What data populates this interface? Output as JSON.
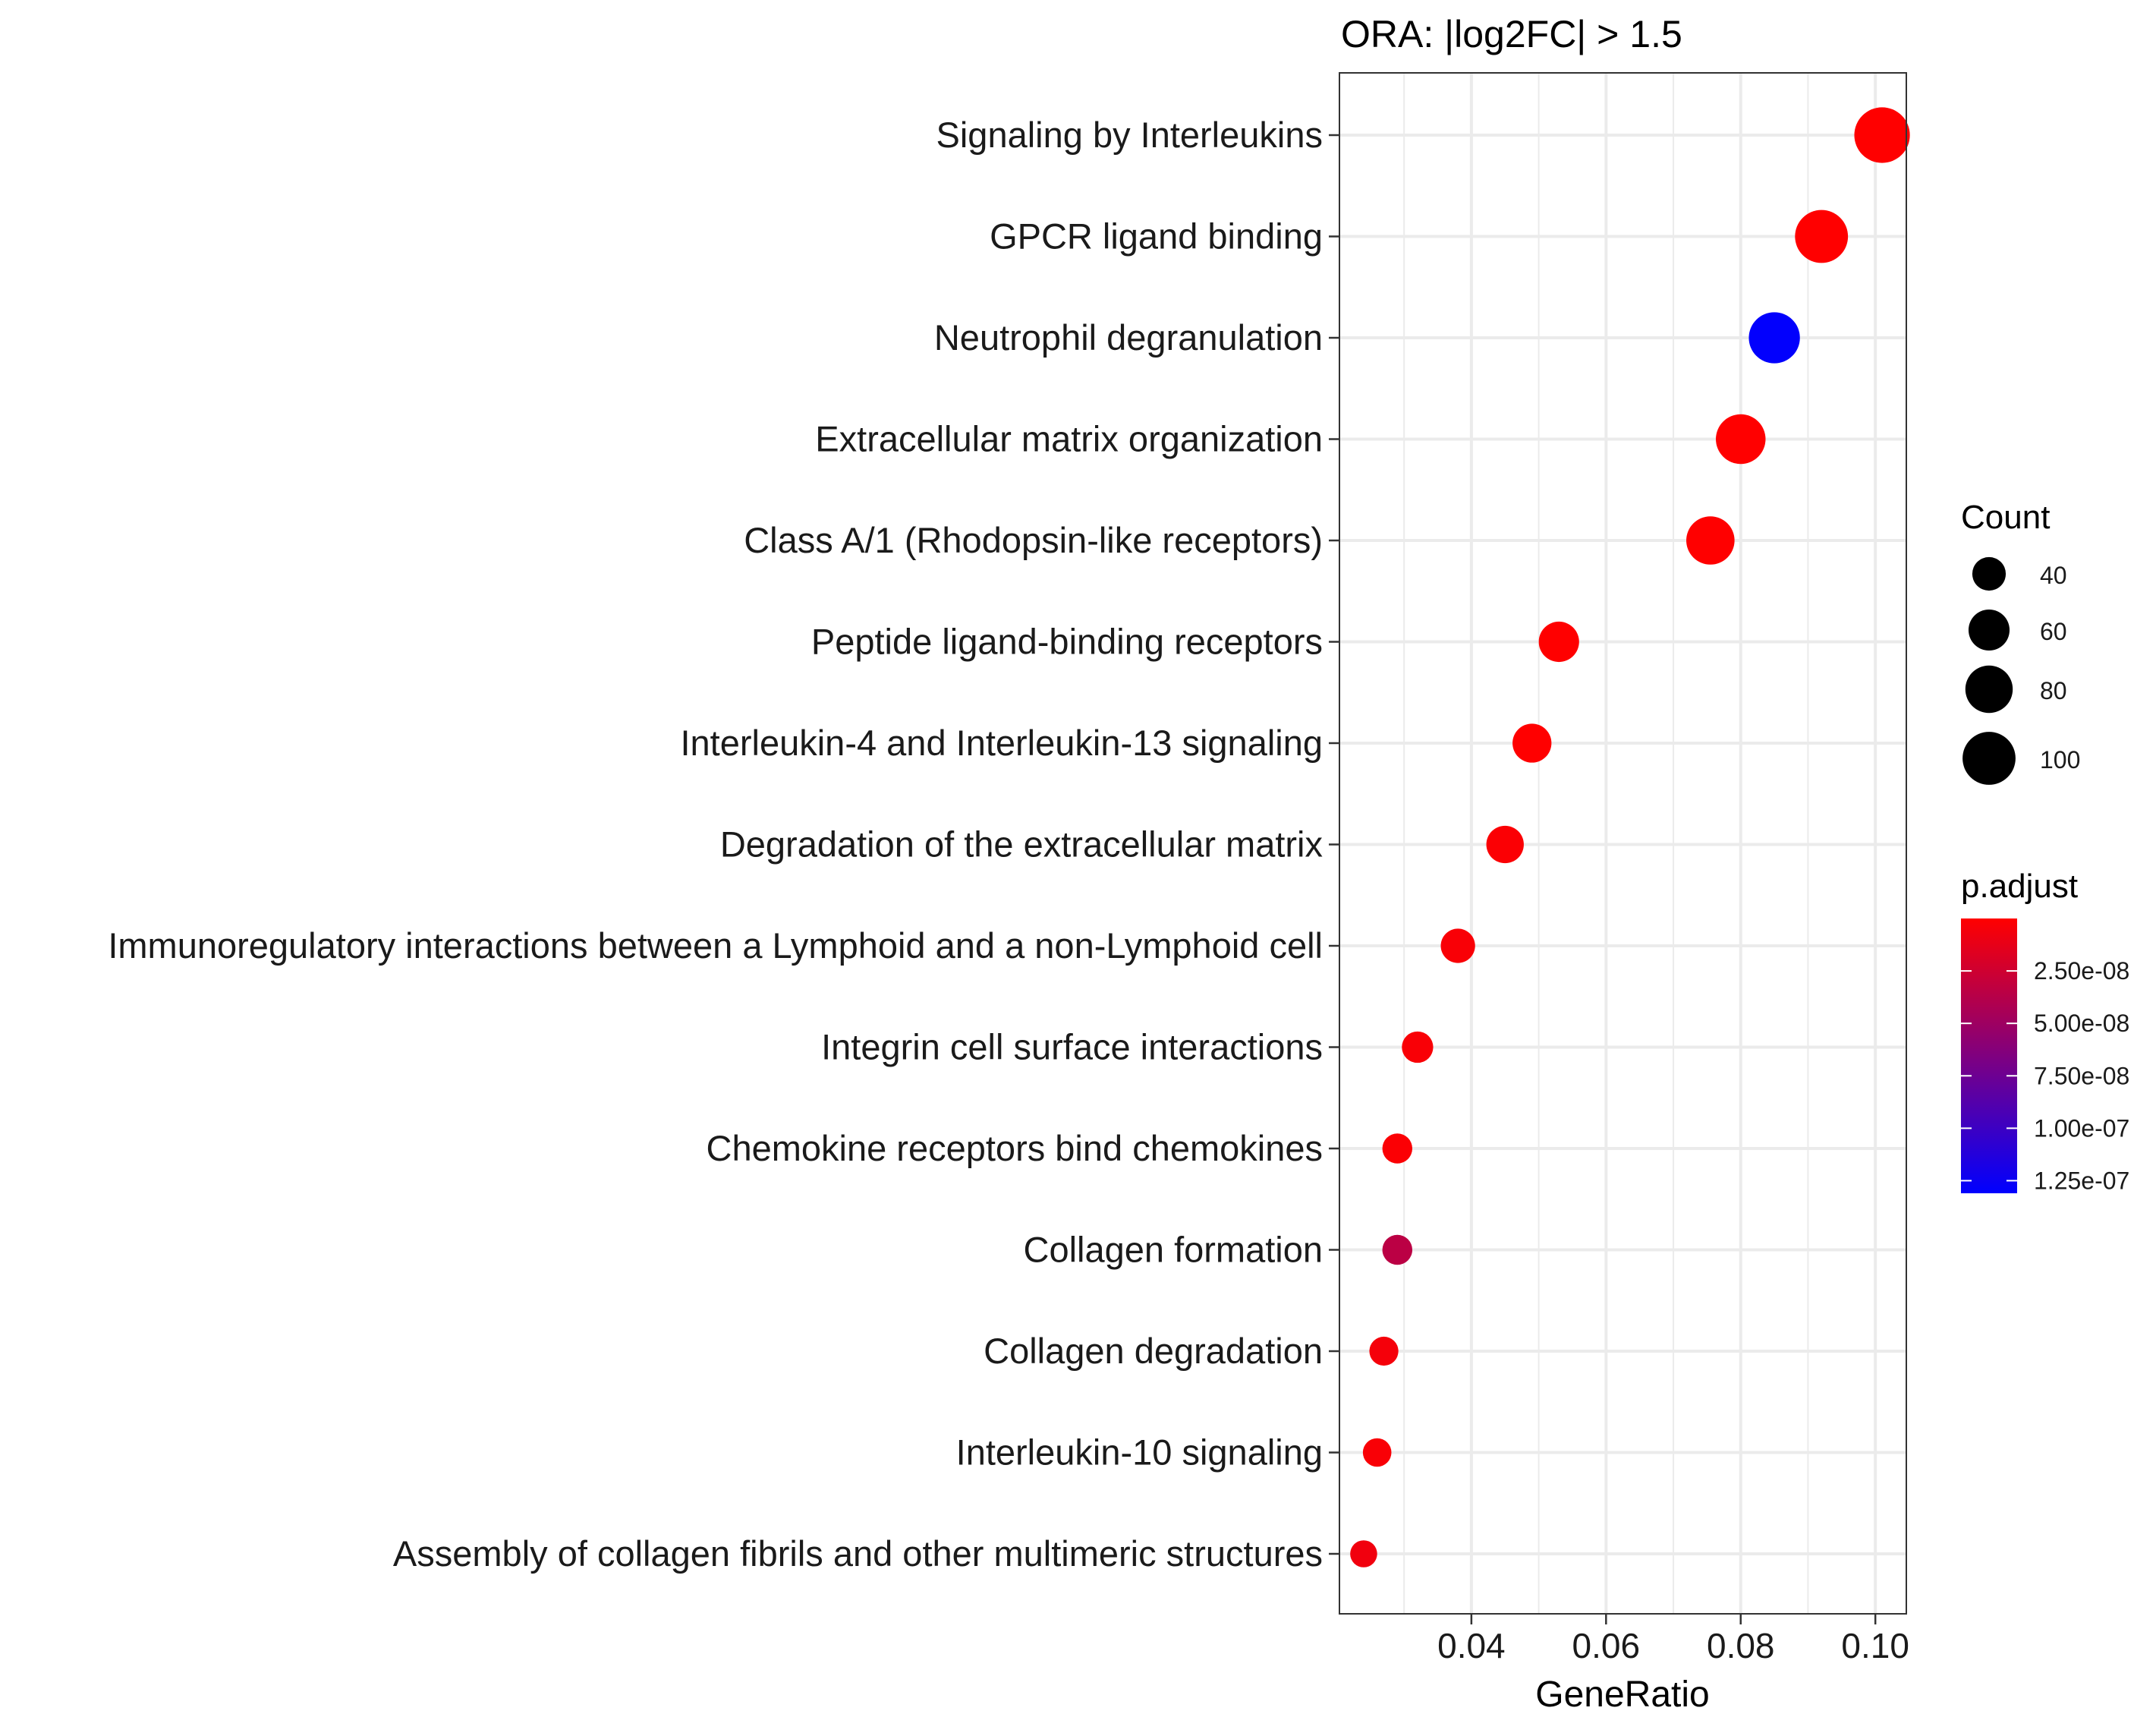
{
  "chart_data": {
    "type": "scatter",
    "title": "ORA: |log2FC| > 1.5",
    "xlabel": "GeneRatio",
    "ylabel": "",
    "xlim": [
      0.0204,
      0.1046
    ],
    "x_ticks": [
      0.04,
      0.06,
      0.08,
      0.1
    ],
    "x_tick_labels": [
      "0.04",
      "0.06",
      "0.08",
      "0.10"
    ],
    "grid": true,
    "points": [
      {
        "label": "Signaling by Interleukins",
        "gene_ratio": 0.101,
        "count": 110,
        "p_adjust": 1e-12
      },
      {
        "label": "GPCR ligand binding",
        "gene_ratio": 0.092,
        "count": 100,
        "p_adjust": 1e-12
      },
      {
        "label": "Neutrophil degranulation",
        "gene_ratio": 0.085,
        "count": 93,
        "p_adjust": 1.3e-07
      },
      {
        "label": "Extracellular matrix organization",
        "gene_ratio": 0.08,
        "count": 88,
        "p_adjust": 1e-12
      },
      {
        "label": "Class A/1 (Rhodopsin-like receptors)",
        "gene_ratio": 0.0755,
        "count": 83,
        "p_adjust": 1e-12
      },
      {
        "label": "Peptide ligand-binding receptors",
        "gene_ratio": 0.053,
        "count": 58,
        "p_adjust": 1e-12
      },
      {
        "label": "Interleukin-4 and Interleukin-13 signaling",
        "gene_ratio": 0.049,
        "count": 54,
        "p_adjust": 1e-12
      },
      {
        "label": "Degradation of the extracellular matrix",
        "gene_ratio": 0.045,
        "count": 50,
        "p_adjust": 2e-09
      },
      {
        "label": "Immunoregulatory interactions between a Lymphoid and a non-Lymphoid cell",
        "gene_ratio": 0.038,
        "count": 42,
        "p_adjust": 3e-09
      },
      {
        "label": "Integrin cell surface interactions",
        "gene_ratio": 0.032,
        "count": 35,
        "p_adjust": 3e-09
      },
      {
        "label": "Chemokine receptors bind chemokines",
        "gene_ratio": 0.029,
        "count": 32,
        "p_adjust": 2e-09
      },
      {
        "label": "Collagen formation",
        "gene_ratio": 0.029,
        "count": 32,
        "p_adjust": 3.5e-08
      },
      {
        "label": "Collagen degradation",
        "gene_ratio": 0.027,
        "count": 30,
        "p_adjust": 5e-09
      },
      {
        "label": "Interleukin-10 signaling",
        "gene_ratio": 0.026,
        "count": 29,
        "p_adjust": 3e-09
      },
      {
        "label": "Assembly of collagen fibrils and other multimeric structures",
        "gene_ratio": 0.024,
        "count": 26,
        "p_adjust": 7e-09
      }
    ],
    "size_legend": {
      "title": "Count",
      "values": [
        40,
        60,
        80,
        100
      ],
      "labels": [
        "40",
        "60",
        "80",
        "100"
      ]
    },
    "color_legend": {
      "title": "p.adjust",
      "range": [
        0.0,
        1.31e-07
      ],
      "low_color": "#FF0000",
      "high_color": "#0000FF",
      "ticks": [
        2.5e-08,
        5e-08,
        7.5e-08,
        1e-07,
        1.25e-07
      ],
      "tick_labels": [
        "2.50e-08",
        "5.00e-08",
        "7.50e-08",
        "1.00e-07",
        "1.25e-07"
      ]
    },
    "colors": {
      "grid": "#EBEBEB",
      "panel_border": "#333333",
      "text": "#000000"
    }
  }
}
